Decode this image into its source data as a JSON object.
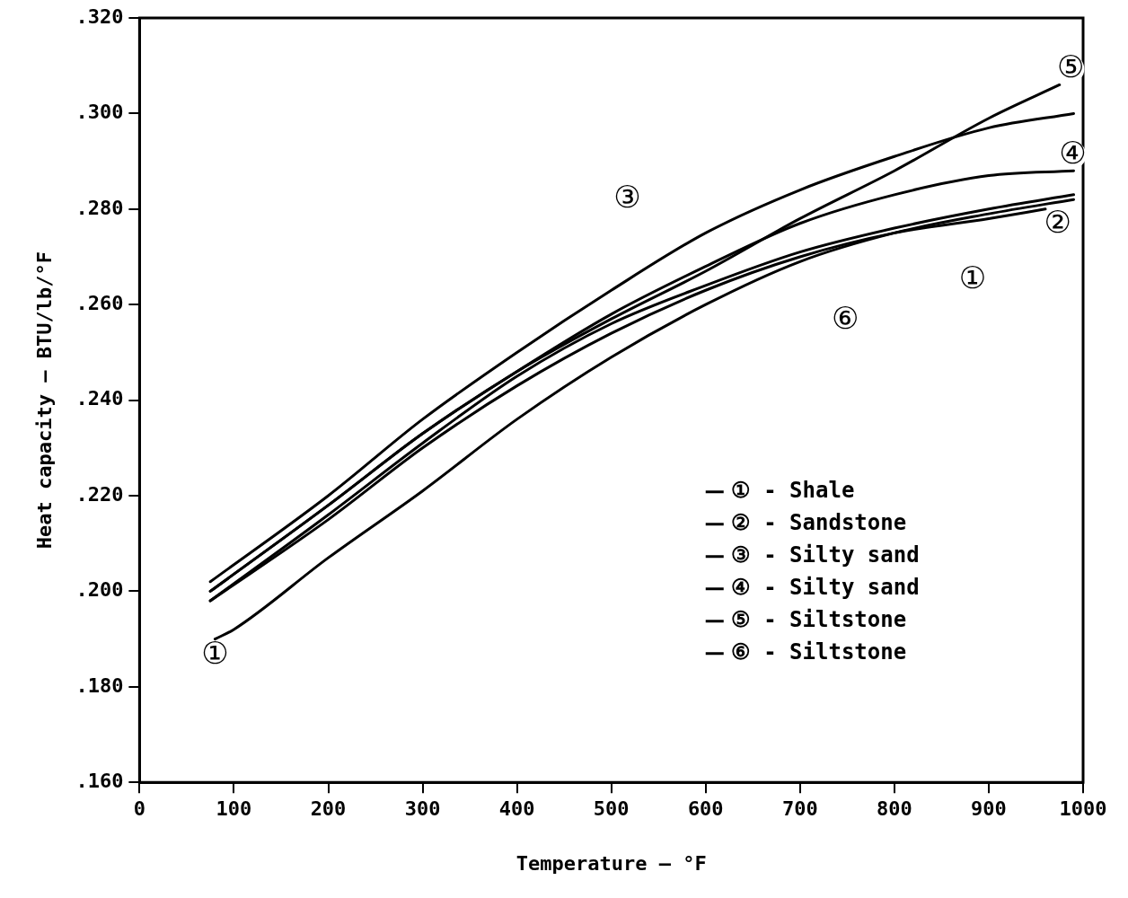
{
  "chart_data": {
    "type": "line",
    "xlabel": "Temperature — °F",
    "ylabel": "Heat capacity — BTU/lb/°F",
    "xlim": [
      0,
      1000
    ],
    "xticks": [
      0,
      100,
      200,
      300,
      400,
      500,
      600,
      700,
      800,
      900,
      1000
    ],
    "ylim": [
      0.16,
      0.32
    ],
    "yticks": [
      {
        "value": 0.16,
        "label": ".160"
      },
      {
        "value": 0.18,
        "label": ".180"
      },
      {
        "value": 0.2,
        "label": ".200"
      },
      {
        "value": 0.22,
        "label": ".220"
      },
      {
        "value": 0.24,
        "label": ".240"
      },
      {
        "value": 0.26,
        "label": ".260"
      },
      {
        "value": 0.28,
        "label": ".280"
      },
      {
        "value": 0.3,
        "label": ".300"
      },
      {
        "value": 0.32,
        "label": ".320"
      }
    ],
    "grid": false,
    "legend": "bottom right",
    "marker": "none",
    "line_style": "solid",
    "series": [
      {
        "name": "① - Shale",
        "color": "#000000",
        "x": [
          80,
          100,
          200,
          300,
          400,
          500,
          600,
          700,
          800,
          900,
          990
        ],
        "values": [
          0.19,
          0.192,
          0.207,
          0.221,
          0.236,
          0.249,
          0.26,
          0.269,
          0.275,
          0.279,
          0.282
        ]
      },
      {
        "name": "② - Sandstone",
        "color": "#000000",
        "x": [
          75,
          200,
          300,
          400,
          500,
          600,
          700,
          800,
          900,
          960
        ],
        "values": [
          0.198,
          0.215,
          0.23,
          0.243,
          0.254,
          0.263,
          0.27,
          0.275,
          0.278,
          0.28
        ]
      },
      {
        "name": "③ - Silty sand",
        "color": "#000000",
        "x": [
          75,
          200,
          300,
          400,
          500,
          600,
          700,
          800,
          900,
          990
        ],
        "values": [
          0.202,
          0.22,
          0.236,
          0.25,
          0.263,
          0.275,
          0.284,
          0.291,
          0.297,
          0.3
        ]
      },
      {
        "name": "④ - Silty sand",
        "color": "#000000",
        "x": [
          75,
          200,
          300,
          400,
          500,
          600,
          700,
          800,
          900,
          990
        ],
        "values": [
          0.2,
          0.218,
          0.233,
          0.246,
          0.258,
          0.268,
          0.277,
          0.283,
          0.287,
          0.288
        ]
      },
      {
        "name": "⑤ - Siltstone",
        "color": "#000000",
        "x": [
          75,
          200,
          300,
          400,
          500,
          600,
          700,
          800,
          900,
          975
        ],
        "values": [
          0.2,
          0.218,
          0.233,
          0.246,
          0.257,
          0.267,
          0.278,
          0.288,
          0.299,
          0.306
        ]
      },
      {
        "name": "⑥ - Siltstone",
        "color": "#000000",
        "x": [
          75,
          200,
          300,
          400,
          500,
          600,
          700,
          800,
          900,
          990
        ],
        "values": [
          0.198,
          0.216,
          0.231,
          0.245,
          0.256,
          0.264,
          0.271,
          0.276,
          0.28,
          0.283
        ]
      }
    ],
    "annotations": [
      {
        "text": "①",
        "x": 80,
        "y": 0.1866
      },
      {
        "text": "①",
        "x": 883,
        "y": 0.265
      },
      {
        "text": "②",
        "x": 973,
        "y": 0.2767
      },
      {
        "text": "③",
        "x": 517,
        "y": 0.282
      },
      {
        "text": "④",
        "x": 989,
        "y": 0.2913
      },
      {
        "text": "⑤",
        "x": 987,
        "y": 0.3093
      },
      {
        "text": "⑥",
        "x": 748,
        "y": 0.2566
      }
    ]
  }
}
